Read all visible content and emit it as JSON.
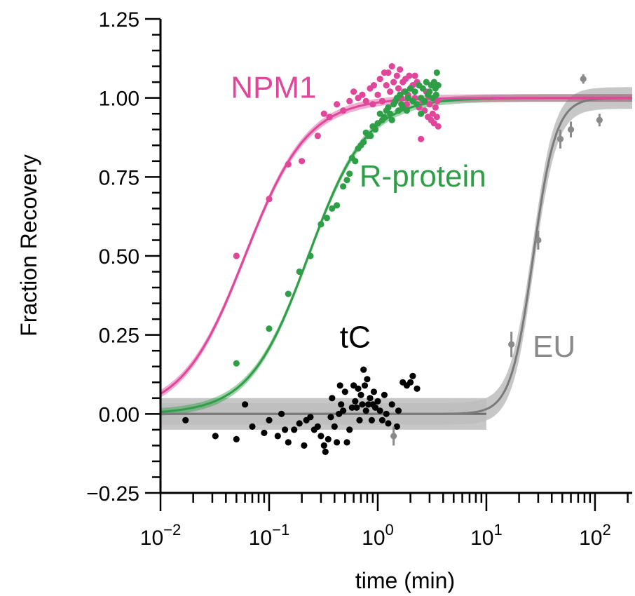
{
  "chart_data": {
    "type": "scatter",
    "title": "",
    "xlabel": "time (min)",
    "ylabel": "Fraction Recovery",
    "xscale": "log",
    "xlim": [
      0.01,
      220
    ],
    "ylim": [
      -0.25,
      1.25
    ],
    "grid": false,
    "x_tick_labels": [
      {
        "value": 0.01,
        "base": "10",
        "exp": "−2"
      },
      {
        "value": 0.1,
        "base": "10",
        "exp": "−1"
      },
      {
        "value": 1,
        "base": "10",
        "exp": "0"
      },
      {
        "value": 10,
        "base": "10",
        "exp": "1"
      },
      {
        "value": 100,
        "base": "10",
        "exp": "2"
      }
    ],
    "y_ticks": [
      {
        "value": -0.25,
        "label": "−0.25"
      },
      {
        "value": 0.0,
        "label": "0.00"
      },
      {
        "value": 0.25,
        "label": "0.25"
      },
      {
        "value": 0.5,
        "label": "0.50"
      },
      {
        "value": 0.75,
        "label": "0.75"
      },
      {
        "value": 1.0,
        "label": "1.00"
      },
      {
        "value": 1.25,
        "label": "1.25"
      }
    ],
    "series": [
      {
        "name": "NPM1",
        "color": "#e0479a",
        "label_position": [
          0.11,
          1.0
        ],
        "fit": {
          "type": "logistic_log",
          "bottom": 0.0,
          "top": 1.0,
          "x50": 0.06,
          "slope": 1.5,
          "band": 0.012
        },
        "points": [
          [
            0.05,
            0.5
          ],
          [
            0.1,
            0.68
          ],
          [
            0.15,
            0.79
          ],
          [
            0.2,
            0.8
          ],
          [
            0.28,
            0.88
          ],
          [
            0.32,
            0.95
          ],
          [
            0.36,
            0.94
          ],
          [
            0.42,
            0.98
          ],
          [
            0.48,
            0.96
          ],
          [
            0.55,
            0.99
          ],
          [
            0.6,
            1.02
          ],
          [
            0.66,
            1.0
          ],
          [
            0.72,
            1.01
          ],
          [
            0.78,
            0.99
          ],
          [
            0.85,
            1.03
          ],
          [
            0.92,
            1.04
          ],
          [
            1.0,
            1.01
          ],
          [
            1.05,
            1.06
          ],
          [
            1.1,
            0.99
          ],
          [
            1.15,
            1.08
          ],
          [
            1.2,
            1.04
          ],
          [
            1.25,
            0.97
          ],
          [
            1.3,
            1.02
          ],
          [
            1.35,
            1.1
          ],
          [
            1.4,
            1.05
          ],
          [
            1.45,
            0.99
          ],
          [
            1.5,
            1.07
          ],
          [
            1.55,
            1.03
          ],
          [
            1.6,
            1.09
          ],
          [
            1.65,
            1.0
          ],
          [
            1.7,
            1.05
          ],
          [
            1.75,
            1.02
          ],
          [
            1.8,
            1.06
          ],
          [
            1.85,
            0.98
          ],
          [
            1.9,
            1.01
          ],
          [
            1.95,
            1.07
          ],
          [
            2.0,
            1.03
          ],
          [
            2.1,
            1.04
          ],
          [
            2.2,
            1.0
          ],
          [
            2.3,
            1.05
          ],
          [
            2.4,
            0.97
          ],
          [
            2.5,
            0.87
          ],
          [
            2.6,
            0.99
          ],
          [
            2.7,
            0.96
          ],
          [
            2.8,
            1.02
          ],
          [
            2.9,
            0.94
          ],
          [
            3.0,
            0.98
          ],
          [
            3.1,
            0.93
          ],
          [
            3.2,
            0.95
          ],
          [
            3.3,
            0.92
          ],
          [
            3.4,
            0.97
          ],
          [
            3.5,
            0.94
          ],
          [
            3.55,
            0.99
          ],
          [
            3.6,
            0.91
          ],
          [
            2.2,
            1.07
          ],
          [
            1.25,
            1.08
          ],
          [
            0.9,
            0.98
          ],
          [
            1.7,
            0.97
          ]
        ]
      },
      {
        "name": "R-protein",
        "color": "#2e9e47",
        "label_position": [
          2.6,
          0.72
        ],
        "fit": {
          "type": "logistic_log",
          "bottom": 0.0,
          "top": 1.0,
          "x50": 0.23,
          "slope": 1.6,
          "band": 0.012
        },
        "points": [
          [
            0.05,
            0.16
          ],
          [
            0.1,
            0.27
          ],
          [
            0.15,
            0.38
          ],
          [
            0.19,
            0.45
          ],
          [
            0.24,
            0.5
          ],
          [
            0.3,
            0.6
          ],
          [
            0.34,
            0.62
          ],
          [
            0.38,
            0.65
          ],
          [
            0.42,
            0.66
          ],
          [
            0.48,
            0.72
          ],
          [
            0.52,
            0.74
          ],
          [
            0.55,
            0.76
          ],
          [
            0.58,
            0.81
          ],
          [
            0.62,
            0.8
          ],
          [
            0.66,
            0.84
          ],
          [
            0.7,
            0.85
          ],
          [
            0.74,
            0.86
          ],
          [
            0.78,
            0.89
          ],
          [
            0.82,
            0.88
          ],
          [
            0.86,
            0.88
          ],
          [
            0.9,
            0.91
          ],
          [
            0.95,
            0.9
          ],
          [
            1.0,
            0.92
          ],
          [
            1.05,
            0.95
          ],
          [
            1.1,
            0.93
          ],
          [
            1.15,
            0.94
          ],
          [
            1.2,
            0.96
          ],
          [
            1.25,
            0.97
          ],
          [
            1.3,
            0.95
          ],
          [
            1.4,
            0.98
          ],
          [
            1.45,
            0.99
          ],
          [
            1.5,
            1.0
          ],
          [
            1.55,
            0.96
          ],
          [
            1.6,
            1.01
          ],
          [
            1.65,
            0.98
          ],
          [
            1.7,
            0.97
          ],
          [
            1.8,
            1.02
          ],
          [
            1.85,
            0.96
          ],
          [
            1.9,
            1.0
          ],
          [
            2.0,
            1.03
          ],
          [
            2.1,
            0.99
          ],
          [
            2.2,
            1.02
          ],
          [
            2.3,
            0.98
          ],
          [
            2.4,
            1.04
          ],
          [
            2.5,
            1.0
          ],
          [
            2.6,
            1.03
          ],
          [
            2.7,
            0.99
          ],
          [
            2.8,
            1.05
          ],
          [
            2.9,
            1.01
          ],
          [
            3.0,
            1.02
          ],
          [
            3.1,
            1.04
          ],
          [
            3.2,
            1.0
          ],
          [
            3.3,
            1.05
          ],
          [
            3.4,
            1.03
          ],
          [
            3.5,
            1.08
          ],
          [
            3.45,
            1.01
          ],
          [
            3.6,
            1.04
          ],
          [
            2.5,
            0.95
          ],
          [
            1.35,
            0.93
          ]
        ]
      },
      {
        "name": "tC",
        "color": "#000000",
        "label_position": [
          0.62,
          0.21
        ],
        "fit": {
          "type": "constant",
          "value": 0.0,
          "band": 0.05,
          "x_end": 10
        },
        "points": [
          [
            0.017,
            -0.02
          ],
          [
            0.032,
            -0.07
          ],
          [
            0.05,
            -0.08
          ],
          [
            0.06,
            0.03
          ],
          [
            0.07,
            -0.04
          ],
          [
            0.09,
            -0.06
          ],
          [
            0.1,
            -0.02
          ],
          [
            0.12,
            -0.07
          ],
          [
            0.13,
            0.0
          ],
          [
            0.14,
            -0.05
          ],
          [
            0.15,
            -0.09
          ],
          [
            0.17,
            -0.05
          ],
          [
            0.19,
            -0.03
          ],
          [
            0.21,
            -0.1
          ],
          [
            0.22,
            -0.02
          ],
          [
            0.24,
            -0.01
          ],
          [
            0.26,
            -0.05
          ],
          [
            0.28,
            -0.04
          ],
          [
            0.3,
            -0.07
          ],
          [
            0.32,
            -0.1
          ],
          [
            0.33,
            -0.12
          ],
          [
            0.35,
            -0.08
          ],
          [
            0.37,
            -0.01
          ],
          [
            0.38,
            0.05
          ],
          [
            0.4,
            -0.04
          ],
          [
            0.42,
            -0.09
          ],
          [
            0.44,
            0.0
          ],
          [
            0.46,
            0.03
          ],
          [
            0.48,
            0.01
          ],
          [
            0.5,
            0.07
          ],
          [
            0.52,
            -0.09
          ],
          [
            0.55,
            -0.05
          ],
          [
            0.58,
            0.02
          ],
          [
            0.6,
            0.09
          ],
          [
            0.62,
            0.04
          ],
          [
            0.64,
            0.02
          ],
          [
            0.66,
            0.08
          ],
          [
            0.68,
            -0.02
          ],
          [
            0.7,
            0.06
          ],
          [
            0.72,
            0.03
          ],
          [
            0.74,
            0.14
          ],
          [
            0.76,
            0.09
          ],
          [
            0.78,
            0.01
          ],
          [
            0.8,
            0.11
          ],
          [
            0.82,
            0.03
          ],
          [
            0.85,
            0.05
          ],
          [
            0.88,
            -0.02
          ],
          [
            0.9,
            0.03
          ],
          [
            0.92,
            0.07
          ],
          [
            0.95,
            0.02
          ],
          [
            1.0,
            0.04
          ],
          [
            1.05,
            0.01
          ],
          [
            1.1,
            -0.02
          ],
          [
            1.15,
            0.06
          ],
          [
            1.2,
            0.0
          ],
          [
            1.25,
            -0.03
          ],
          [
            1.35,
            0.03
          ],
          [
            1.55,
            0.01
          ],
          [
            1.7,
            0.1
          ],
          [
            1.85,
            0.09
          ],
          [
            2.0,
            0.1
          ],
          [
            2.1,
            0.12
          ],
          [
            2.3,
            0.08
          ],
          [
            1.5,
            -0.04
          ],
          [
            0.45,
            0.09
          ]
        ]
      },
      {
        "name": "EU",
        "color": "#8a8a8a",
        "label_position": [
          42,
          0.18
        ],
        "fit": {
          "type": "logistic_log",
          "bottom": 0.0,
          "top": 1.0,
          "x50": 27,
          "slope": 4.2,
          "band": 0.05
        },
        "points_with_error": [
          [
            1.4,
            -0.07,
            0.03
          ],
          [
            17,
            0.22,
            0.04
          ],
          [
            30,
            0.55,
            0.03
          ],
          [
            48,
            0.87,
            0.03
          ],
          [
            60,
            0.9,
            0.025
          ],
          [
            78,
            1.06,
            0.015
          ],
          [
            110,
            0.93,
            0.02
          ]
        ]
      }
    ]
  }
}
